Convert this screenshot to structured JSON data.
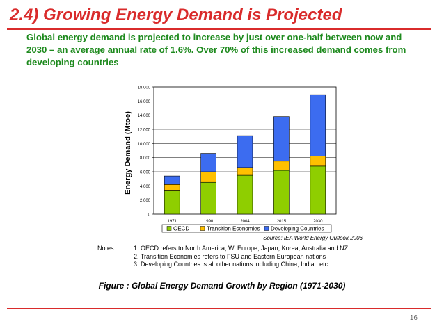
{
  "slide": {
    "title": "2.4) Growing Energy Demand is Projected",
    "subtitle": "Global energy demand is projected to increase by just over one-half between now and 2030 – an average annual rate of 1.6%.  Over 70% of this increased demand comes from developing countries",
    "notes_label": "Notes:",
    "notes": [
      "1. OECD refers to North America, W. Europe, Japan, Korea, Australia and NZ",
      "2. Transition Economies refers to FSU and Eastern European nations",
      "3. Developing Countries is all other nations including China, India ..etc."
    ],
    "caption": "Figure : Global Energy Demand Growth by Region (1971-2030)",
    "page_number": "16"
  },
  "chart_data": {
    "type": "bar",
    "stacked": true,
    "categories": [
      "1971",
      "1990",
      "2004",
      "2015",
      "2030"
    ],
    "series": [
      {
        "name": "OECD",
        "color": "#8fce00",
        "values": [
          3300,
          4500,
          5500,
          6200,
          6800
        ]
      },
      {
        "name": "Transition Economies",
        "color": "#ffc000",
        "values": [
          900,
          1500,
          1100,
          1300,
          1400
        ]
      },
      {
        "name": "Developing Countries",
        "color": "#3c6cf0",
        "values": [
          1200,
          2600,
          4500,
          6300,
          8700
        ]
      }
    ],
    "ylabel": "Energy Demand (Mtoe)",
    "xlabel": "",
    "ylim": [
      0,
      18000
    ],
    "yticks": [
      "0",
      "2,000",
      "4,000",
      "6,000",
      "8,000",
      "10,000",
      "12,000",
      "14,000",
      "16,000",
      "18,000"
    ],
    "legend_position": "bottom",
    "source": "Source: IEA World Energy Outlook 2006",
    "grid": true
  }
}
